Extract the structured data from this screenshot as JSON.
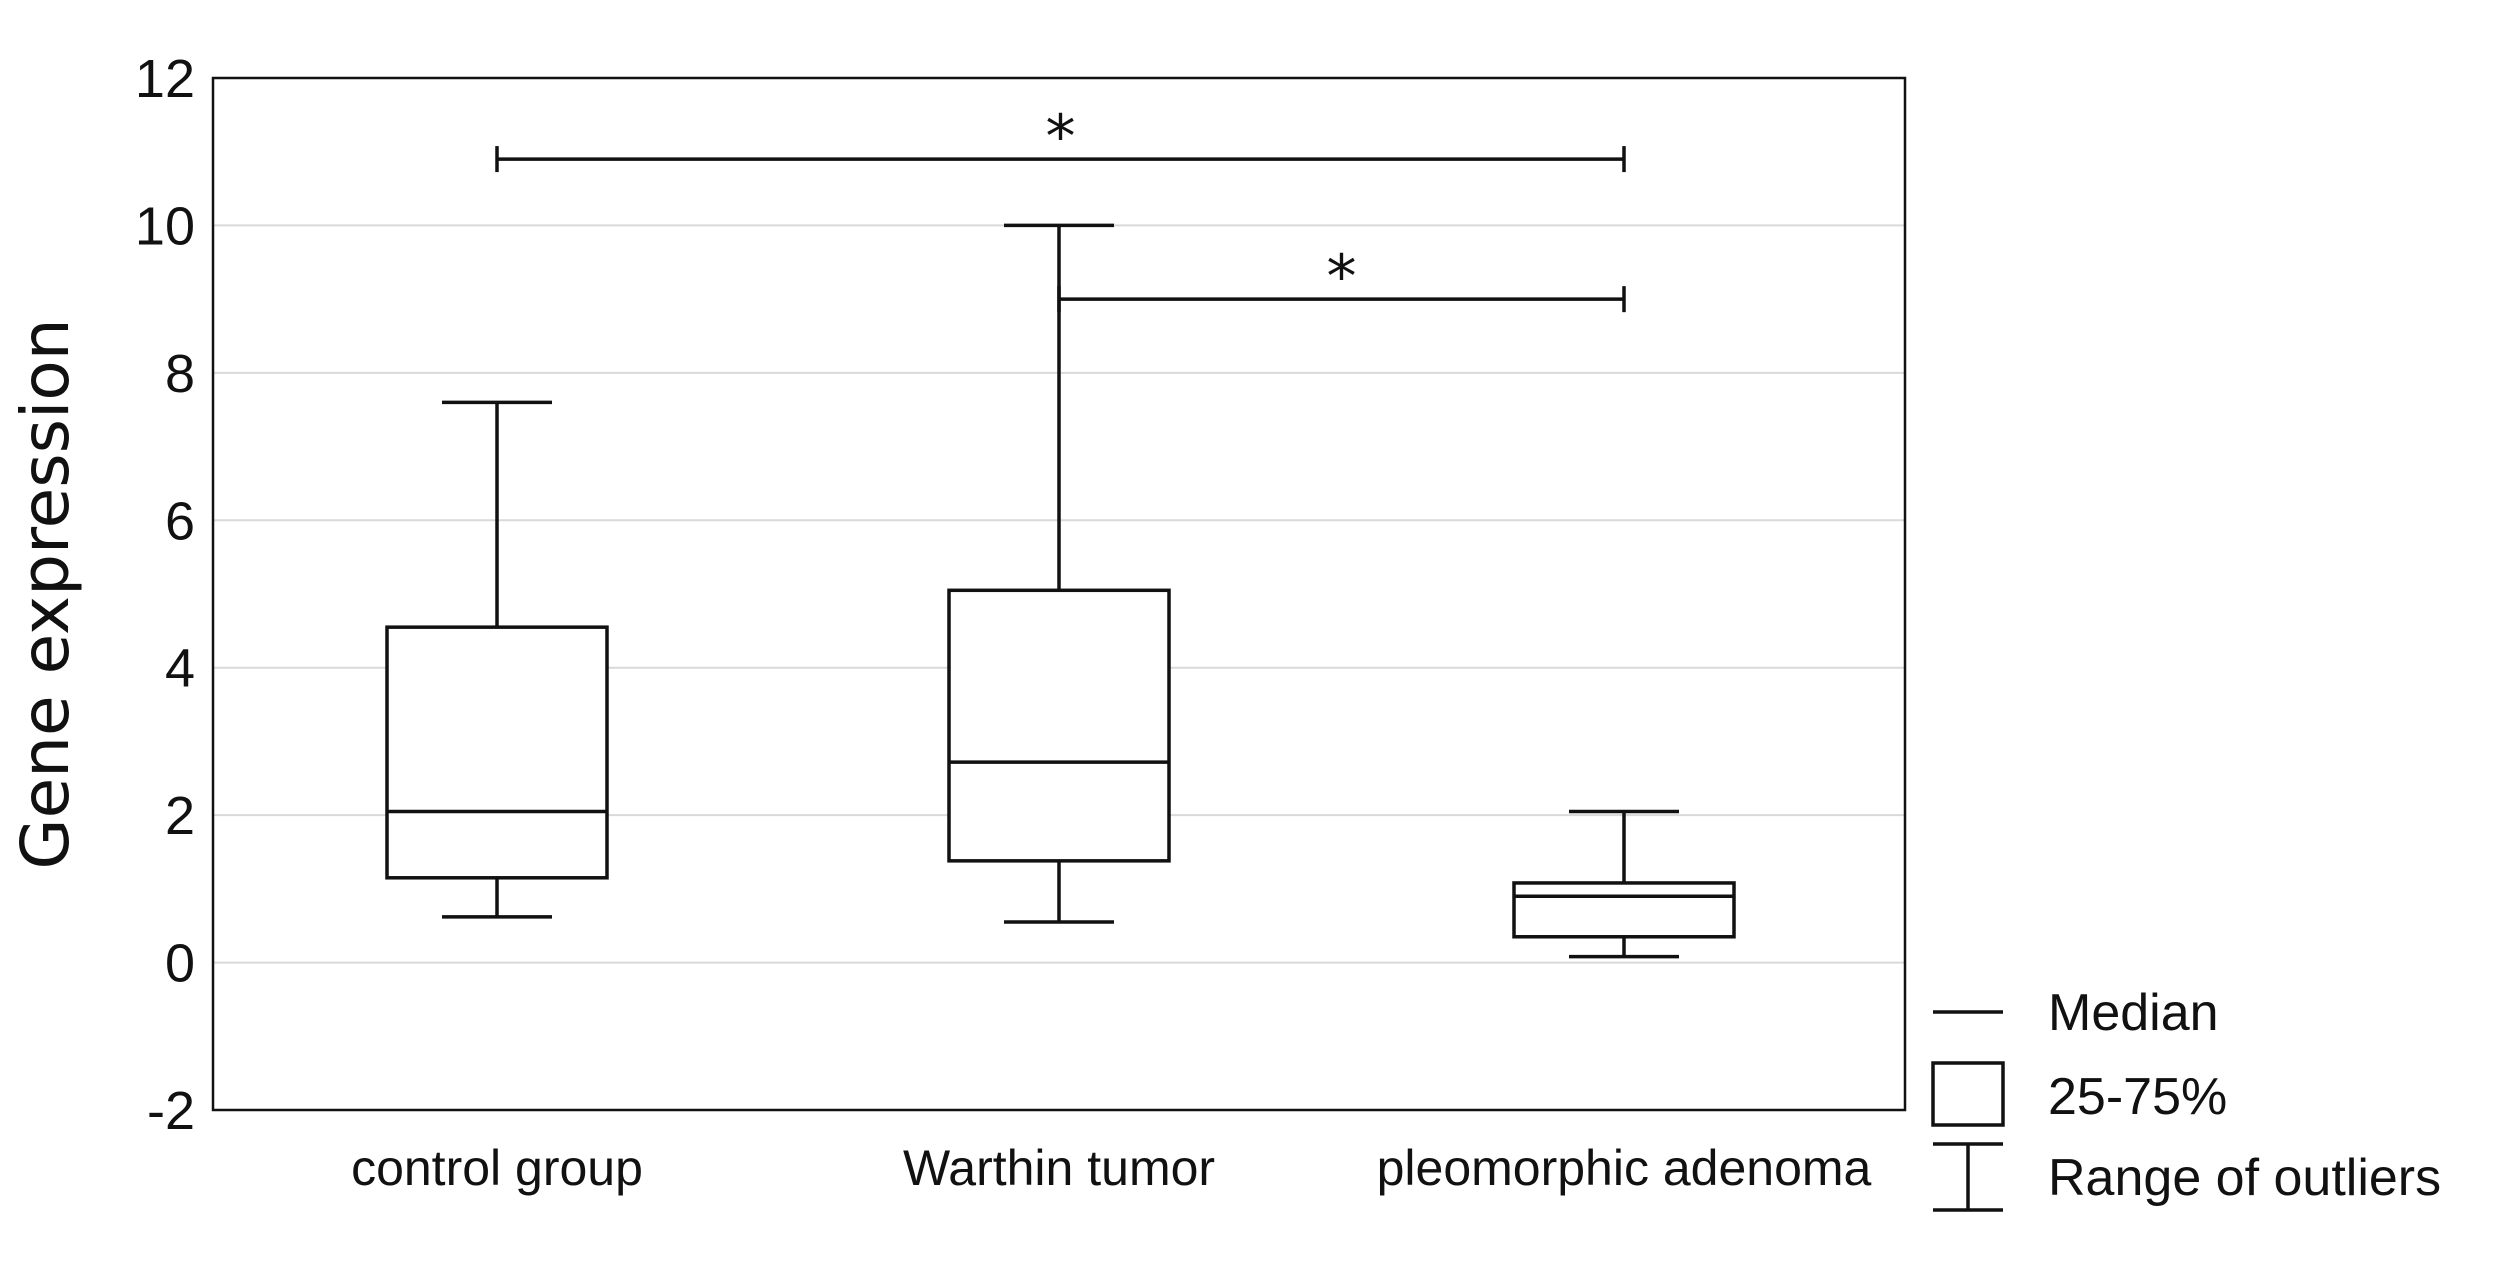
{
  "chart_data": {
    "type": "box",
    "ylabel": "Gene expression",
    "xlabel": "",
    "ylim": [
      -2,
      12
    ],
    "yticks": [
      -2,
      0,
      2,
      4,
      6,
      8,
      10,
      12
    ],
    "grid": true,
    "categories": [
      "control group",
      "Warthin tumor",
      "pleomorphic adenoma"
    ],
    "boxes": [
      {
        "category": "control group",
        "min": 0.62,
        "q1": 1.15,
        "median": 2.05,
        "q3": 4.55,
        "max": 7.6
      },
      {
        "category": "Warthin tumor",
        "min": 0.55,
        "q1": 1.38,
        "median": 2.72,
        "q3": 5.05,
        "max": 10.0
      },
      {
        "category": "pleomorphic adenoma",
        "min": 0.08,
        "q1": 0.35,
        "median": 0.9,
        "q3": 1.08,
        "max": 2.05
      }
    ],
    "significance": [
      {
        "from": "control group",
        "to": "pleomorphic adenoma",
        "y": 10.9,
        "label": "*"
      },
      {
        "from": "Warthin tumor",
        "to": "pleomorphic adenoma",
        "y": 9.0,
        "label": "*"
      }
    ],
    "legend": {
      "position": "bottom-right",
      "entries": [
        {
          "symbol": "line",
          "label": "Median"
        },
        {
          "symbol": "box",
          "label": "25-75%"
        },
        {
          "symbol": "whisker",
          "label": "Range of outliers"
        }
      ]
    }
  }
}
